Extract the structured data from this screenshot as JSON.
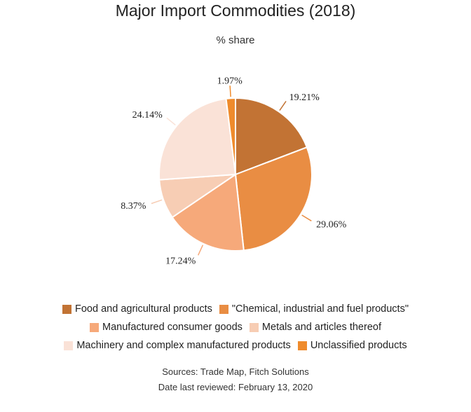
{
  "header": {
    "title": "Major Import Commodities (2018)",
    "subtitle": "% share"
  },
  "footer": {
    "sources": "Sources: Trade Map, Fitch Solutions",
    "reviewed": "Date last reviewed: February 13, 2020"
  },
  "chart_data": {
    "type": "pie",
    "title": "Major Import Commodities (2018)",
    "subtitle": "% share",
    "legend_position": "bottom",
    "slices": [
      {
        "label": "Food and agricultural products",
        "value": 19.21,
        "display": "19.21%",
        "color": "#c27334"
      },
      {
        "label": "\"Chemical, industrial and fuel products\"",
        "value": 29.06,
        "display": "29.06%",
        "color": "#e98d43"
      },
      {
        "label": "Manufactured consumer goods",
        "value": 17.24,
        "display": "17.24%",
        "color": "#f6a97a"
      },
      {
        "label": "Metals and articles thereof",
        "value": 8.37,
        "display": "8.37%",
        "color": "#f7cdb4"
      },
      {
        "label": "Machinery and complex manufactured products",
        "value": 24.14,
        "display": "24.14%",
        "color": "#fae2d7"
      },
      {
        "label": "Unclassified products",
        "value": 1.97,
        "display": "1.97%",
        "color": "#ef8b2c"
      }
    ]
  }
}
